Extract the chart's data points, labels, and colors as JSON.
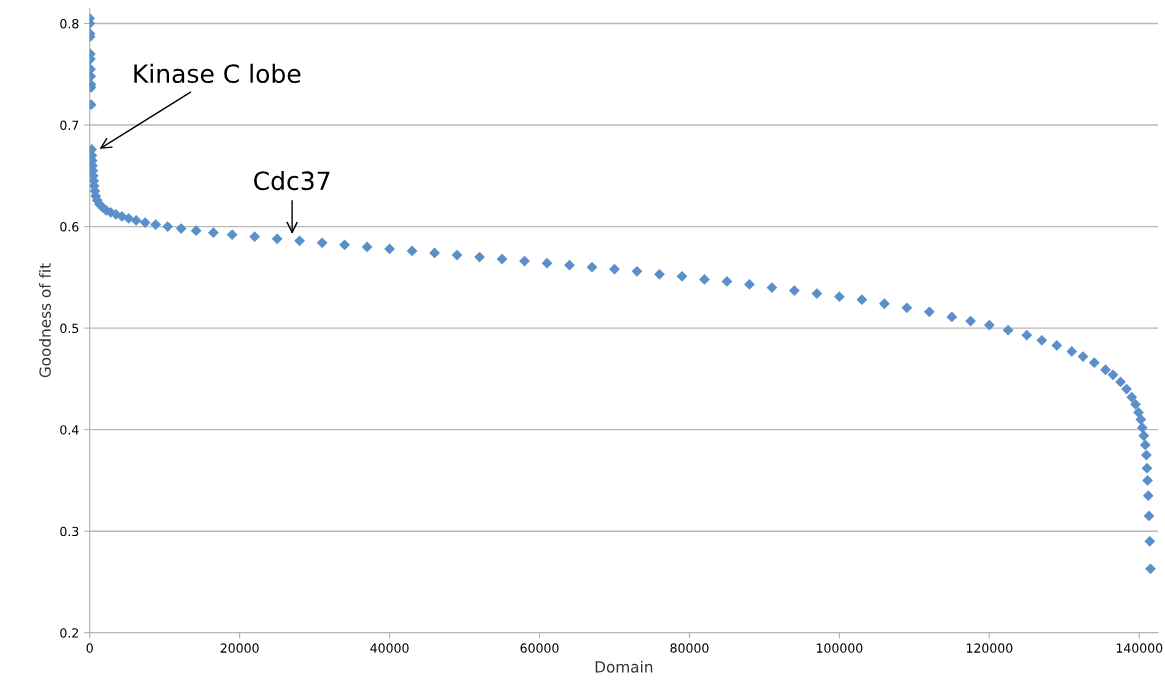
{
  "chart_data": {
    "type": "scatter",
    "xlabel": "Domain",
    "ylabel": "Goodness of fit",
    "xlim": [
      0,
      142500
    ],
    "ylim": [
      0.2,
      0.815
    ],
    "xticks": [
      0,
      20000,
      40000,
      60000,
      80000,
      100000,
      120000,
      140000
    ],
    "yticks": [
      0.2,
      0.3,
      0.4,
      0.5,
      0.6,
      0.7,
      0.8
    ],
    "grid": "y",
    "marker": "diamond",
    "annotations": [
      {
        "text": "Kinase C lobe",
        "x": 1000,
        "y": 0.675
      },
      {
        "text": "Cdc37",
        "x": 27000,
        "y": 0.59
      }
    ],
    "series": [
      {
        "color": "#5b8fc9",
        "x": [
          0,
          20,
          40,
          60,
          80,
          100,
          120,
          140,
          160,
          180,
          200,
          260,
          300,
          340,
          380,
          420,
          480,
          540,
          600,
          700,
          800,
          1000,
          1300,
          1700,
          2200,
          2800,
          3500,
          4300,
          5200,
          6200,
          7400,
          8800,
          10400,
          12200,
          14200,
          16500,
          19000,
          22000,
          25000,
          28000,
          31000,
          34000,
          37000,
          40000,
          43000,
          46000,
          49000,
          52000,
          55000,
          58000,
          61000,
          64000,
          67000,
          70000,
          73000,
          76000,
          79000,
          82000,
          85000,
          88000,
          91000,
          94000,
          97000,
          100000,
          103000,
          106000,
          109000,
          112000,
          115000,
          117500,
          120000,
          122500,
          125000,
          127000,
          129000,
          131000,
          132500,
          134000,
          135500,
          136500,
          137500,
          138300,
          139000,
          139500,
          139900,
          140200,
          140400,
          140600,
          140800,
          140950,
          141030,
          141100,
          141200,
          141300,
          141400,
          141500
        ],
        "values": [
          0.805,
          0.8,
          0.79,
          0.787,
          0.77,
          0.765,
          0.755,
          0.748,
          0.74,
          0.737,
          0.72,
          0.676,
          0.67,
          0.665,
          0.66,
          0.655,
          0.65,
          0.645,
          0.64,
          0.635,
          0.63,
          0.626,
          0.622,
          0.619,
          0.616,
          0.614,
          0.612,
          0.61,
          0.608,
          0.606,
          0.604,
          0.602,
          0.6,
          0.598,
          0.596,
          0.594,
          0.592,
          0.59,
          0.588,
          0.586,
          0.584,
          0.582,
          0.58,
          0.578,
          0.576,
          0.574,
          0.572,
          0.57,
          0.568,
          0.566,
          0.564,
          0.562,
          0.56,
          0.558,
          0.556,
          0.553,
          0.551,
          0.548,
          0.546,
          0.543,
          0.54,
          0.537,
          0.534,
          0.531,
          0.528,
          0.524,
          0.52,
          0.516,
          0.511,
          0.507,
          0.503,
          0.498,
          0.493,
          0.488,
          0.483,
          0.477,
          0.472,
          0.466,
          0.459,
          0.454,
          0.447,
          0.44,
          0.432,
          0.425,
          0.417,
          0.41,
          0.402,
          0.394,
          0.385,
          0.375,
          0.362,
          0.35,
          0.335,
          0.315,
          0.29,
          0.263
        ]
      }
    ]
  }
}
